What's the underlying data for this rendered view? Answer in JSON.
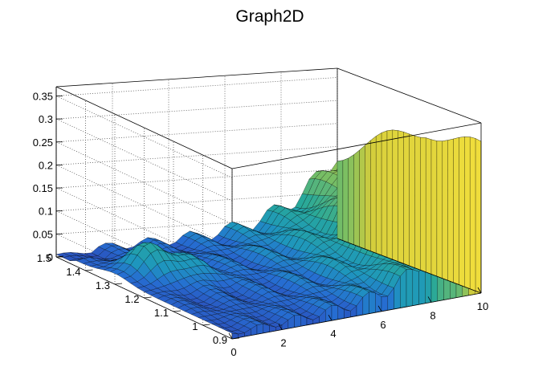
{
  "chart_data": {
    "type": "surface",
    "title": "Graph2D",
    "x_axis": {
      "range": [
        0,
        10
      ],
      "ticks": [
        0,
        2,
        4,
        6,
        8,
        10
      ],
      "tick_labels": [
        "0",
        "2",
        "4",
        "6",
        "8",
        "10"
      ]
    },
    "y_axis": {
      "range": [
        0.9,
        1.5
      ],
      "ticks": [
        0.9,
        1.0,
        1.1,
        1.2,
        1.3,
        1.4,
        1.5
      ],
      "tick_labels": [
        "0.9",
        "1",
        "1.1",
        "1.2",
        "1.3",
        "1.4",
        "1.5"
      ]
    },
    "z_axis": {
      "range": [
        0,
        0.37
      ],
      "ticks": [
        0,
        0.05,
        0.1,
        0.15,
        0.2,
        0.25,
        0.3,
        0.35
      ],
      "tick_labels": [
        "0",
        "0.05",
        "0.1",
        "0.15",
        "0.2",
        "0.25",
        "0.3",
        "0.35"
      ]
    },
    "grid": true,
    "colors": {
      "low": "#2c4bb8",
      "mid": "#27a89a",
      "high": "#f6e13c",
      "frame": "#000000",
      "grid": "#555555"
    }
  }
}
